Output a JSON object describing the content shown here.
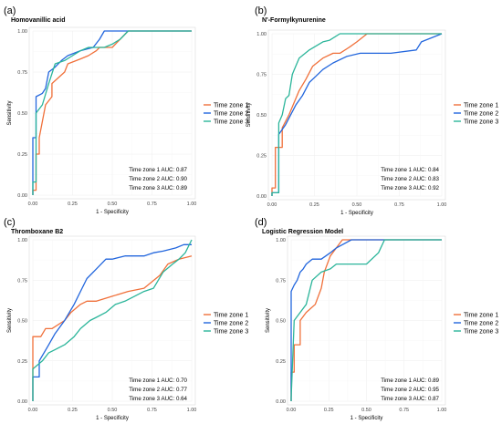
{
  "colors": {
    "series": [
      "#f0703a",
      "#2266dd",
      "#2bb59a"
    ]
  },
  "chart_data": [
    {
      "panel_label": "(a)",
      "type": "line",
      "title": "Homovanillic acid",
      "xlabel": "1 - Specificity",
      "ylabel": "Sensitivity",
      "xlim": [
        0,
        1
      ],
      "ylim": [
        0,
        1
      ],
      "xticks": [
        "0.00",
        "0.25",
        "0.50",
        "0.75",
        "1.00"
      ],
      "yticks": [
        "0.00",
        "0.25",
        "0.50",
        "0.75",
        "1.00"
      ],
      "grid": true,
      "legend_position": "right",
      "series": [
        {
          "name": "Time zone 1",
          "auc": "Time zone 1 AUC: 0.87",
          "x": [
            0,
            0,
            0.02,
            0.02,
            0.04,
            0.04,
            0.08,
            0.12,
            0.12,
            0.2,
            0.22,
            0.3,
            0.35,
            0.4,
            0.42,
            0.5,
            0.55,
            0.6,
            1
          ],
          "y": [
            0,
            0.03,
            0.03,
            0.25,
            0.25,
            0.35,
            0.55,
            0.6,
            0.68,
            0.75,
            0.8,
            0.83,
            0.85,
            0.88,
            0.9,
            0.9,
            0.95,
            1,
            1
          ]
        },
        {
          "name": "Time zone 2",
          "auc": "Time zone 2 AUC: 0.90",
          "x": [
            0,
            0,
            0.02,
            0.02,
            0.06,
            0.08,
            0.1,
            0.14,
            0.18,
            0.22,
            0.3,
            0.38,
            0.42,
            0.45,
            0.5,
            1
          ],
          "y": [
            0,
            0.35,
            0.35,
            0.6,
            0.62,
            0.65,
            0.75,
            0.78,
            0.82,
            0.85,
            0.88,
            0.9,
            0.95,
            1,
            1,
            1
          ]
        },
        {
          "name": "Time zone 3",
          "auc": "Time zone 3 AUC: 0.89",
          "x": [
            0,
            0,
            0.02,
            0.02,
            0.06,
            0.1,
            0.14,
            0.2,
            0.25,
            0.3,
            0.35,
            0.45,
            0.5,
            0.55,
            0.6,
            1
          ],
          "y": [
            0,
            0.08,
            0.08,
            0.5,
            0.55,
            0.68,
            0.8,
            0.82,
            0.85,
            0.88,
            0.9,
            0.9,
            0.92,
            0.95,
            1,
            1
          ]
        }
      ]
    },
    {
      "panel_label": "(b)",
      "type": "line",
      "title": "N'-Formylkynurenine",
      "xlabel": "1 - Specificity",
      "ylabel": "Sensitivity",
      "xlim": [
        0,
        1
      ],
      "ylim": [
        0,
        1
      ],
      "xticks": [
        "0.00",
        "0.25",
        "0.50",
        "0.75",
        "1.00"
      ],
      "yticks": [
        "0.00",
        "0.25",
        "0.50",
        "0.75",
        "1.00"
      ],
      "grid": true,
      "legend_position": "right",
      "series": [
        {
          "name": "Time zone 1",
          "auc": "Time zone 1 AUC: 0.84",
          "x": [
            0,
            0,
            0.02,
            0.02,
            0.06,
            0.06,
            0.1,
            0.12,
            0.16,
            0.2,
            0.24,
            0.3,
            0.36,
            0.4,
            0.46,
            0.5,
            0.56,
            1
          ],
          "y": [
            0,
            0.05,
            0.05,
            0.3,
            0.3,
            0.42,
            0.5,
            0.55,
            0.65,
            0.72,
            0.8,
            0.85,
            0.88,
            0.88,
            0.92,
            0.95,
            1,
            1
          ]
        },
        {
          "name": "Time zone 2",
          "auc": "Time zone 2 AUC: 0.83",
          "x": [
            0,
            0,
            0.04,
            0.04,
            0.08,
            0.1,
            0.14,
            0.18,
            0.22,
            0.26,
            0.3,
            0.36,
            0.44,
            0.52,
            0.6,
            0.7,
            0.85,
            0.88,
            1
          ],
          "y": [
            0,
            0.02,
            0.02,
            0.38,
            0.44,
            0.48,
            0.56,
            0.62,
            0.7,
            0.74,
            0.78,
            0.82,
            0.86,
            0.88,
            0.88,
            0.88,
            0.9,
            0.95,
            1
          ]
        },
        {
          "name": "Time zone 3",
          "auc": "Time zone 3 AUC: 0.92",
          "x": [
            0,
            0,
            0.04,
            0.04,
            0.06,
            0.08,
            0.1,
            0.12,
            0.14,
            0.16,
            0.22,
            0.3,
            0.34,
            0.4,
            1
          ],
          "y": [
            0,
            0.02,
            0.02,
            0.45,
            0.5,
            0.6,
            0.62,
            0.75,
            0.8,
            0.85,
            0.9,
            0.95,
            0.96,
            1,
            1
          ]
        }
      ]
    },
    {
      "panel_label": "(c)",
      "type": "line",
      "title": "Thromboxane B2",
      "xlabel": "1 - Specificity",
      "ylabel": "Sensitivity",
      "xlim": [
        0,
        1
      ],
      "ylim": [
        0,
        1
      ],
      "xticks": [
        "0.00",
        "0.25",
        "0.50",
        "0.75",
        "1.00"
      ],
      "yticks": [
        "0.00",
        "0.25",
        "0.50",
        "0.75",
        "1.00"
      ],
      "grid": true,
      "legend_position": "right",
      "series": [
        {
          "name": "Time zone 1",
          "auc": "Time zone 1 AUC: 0.70",
          "x": [
            0,
            0,
            0.05,
            0.08,
            0.12,
            0.2,
            0.24,
            0.3,
            0.34,
            0.4,
            0.5,
            0.6,
            0.7,
            0.8,
            0.85,
            0.92,
            1
          ],
          "y": [
            0,
            0.4,
            0.4,
            0.45,
            0.45,
            0.5,
            0.55,
            0.6,
            0.62,
            0.62,
            0.65,
            0.68,
            0.7,
            0.78,
            0.85,
            0.88,
            0.9
          ]
        },
        {
          "name": "Time zone 2",
          "auc": "Time zone 2 AUC: 0.77",
          "x": [
            0,
            0,
            0.04,
            0.04,
            0.1,
            0.14,
            0.2,
            0.26,
            0.3,
            0.34,
            0.4,
            0.46,
            0.5,
            0.58,
            0.64,
            0.7,
            0.76,
            0.82,
            0.9,
            0.95,
            1
          ],
          "y": [
            0,
            0.15,
            0.15,
            0.25,
            0.35,
            0.42,
            0.5,
            0.6,
            0.68,
            0.76,
            0.82,
            0.88,
            0.88,
            0.9,
            0.9,
            0.9,
            0.92,
            0.93,
            0.95,
            0.97,
            0.97
          ]
        },
        {
          "name": "Time zone 3",
          "auc": "Time zone 3 AUC: 0.64",
          "x": [
            0,
            0,
            0.06,
            0.1,
            0.14,
            0.2,
            0.26,
            0.3,
            0.36,
            0.4,
            0.46,
            0.52,
            0.58,
            0.64,
            0.7,
            0.76,
            0.82,
            0.88,
            0.92,
            0.96,
            1
          ],
          "y": [
            0,
            0.2,
            0.25,
            0.3,
            0.32,
            0.35,
            0.4,
            0.45,
            0.5,
            0.52,
            0.55,
            0.6,
            0.62,
            0.65,
            0.68,
            0.7,
            0.8,
            0.85,
            0.88,
            0.92,
            1
          ]
        }
      ]
    },
    {
      "panel_label": "(d)",
      "type": "line",
      "title": "Logistic Regression Model",
      "xlabel": "1 - Specificity",
      "ylabel": "Sensitivity",
      "xlim": [
        0,
        1
      ],
      "ylim": [
        0,
        1
      ],
      "xticks": [
        "0.00",
        "0.25",
        "0.50",
        "0.75",
        "1.00"
      ],
      "yticks": [
        "0.00",
        "0.25",
        "0.50",
        "0.75",
        "1.00"
      ],
      "grid": true,
      "legend_position": "right",
      "series": [
        {
          "name": "Time zone 1",
          "auc": "Time zone 1 AUC: 0.89",
          "x": [
            0,
            0,
            0.02,
            0.02,
            0.06,
            0.06,
            0.1,
            0.16,
            0.2,
            0.22,
            0.26,
            0.3,
            0.34,
            1
          ],
          "y": [
            0,
            0.18,
            0.18,
            0.35,
            0.35,
            0.5,
            0.55,
            0.6,
            0.7,
            0.8,
            0.9,
            0.95,
            1,
            1
          ]
        },
        {
          "name": "Time zone 2",
          "auc": "Time zone 2 AUC: 0.95",
          "x": [
            0,
            0,
            0.02,
            0.04,
            0.06,
            0.08,
            0.1,
            0.14,
            0.2,
            0.26,
            0.3,
            0.4,
            0.5,
            0.58,
            1
          ],
          "y": [
            0,
            0.68,
            0.72,
            0.75,
            0.8,
            0.82,
            0.85,
            0.88,
            0.88,
            0.92,
            0.95,
            1,
            1,
            1,
            1
          ]
        },
        {
          "name": "Time zone 3",
          "auc": "Time zone 3 AUC: 0.87",
          "x": [
            0,
            0,
            0.02,
            0.06,
            0.1,
            0.14,
            0.2,
            0.26,
            0.3,
            0.36,
            0.44,
            0.5,
            0.58,
            0.62,
            1
          ],
          "y": [
            0,
            0.02,
            0.5,
            0.55,
            0.6,
            0.75,
            0.8,
            0.82,
            0.85,
            0.85,
            0.85,
            0.85,
            0.92,
            1,
            1
          ]
        }
      ]
    }
  ]
}
